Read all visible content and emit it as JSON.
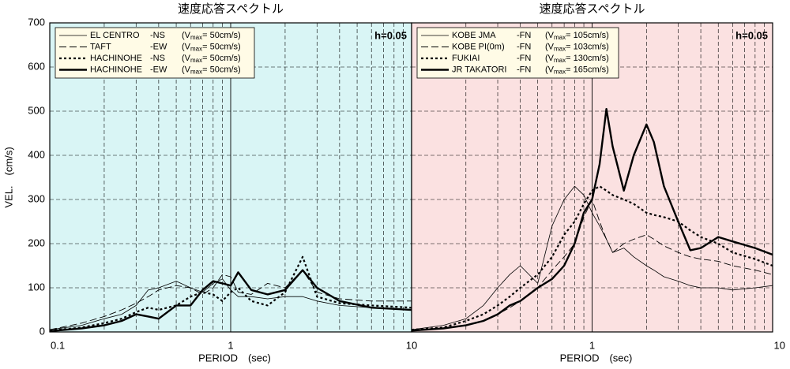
{
  "chart_data": [
    {
      "type": "line",
      "title": "速度応答スペクトル",
      "xlabel": "PERIOD　(sec)",
      "ylabel": "VEL.　(cm/s)",
      "annotation": "h=0.05",
      "background": "#d9f5f5",
      "log_x": true,
      "grid": true,
      "xlim": [
        0.1,
        10
      ],
      "xticks": [
        0.1,
        1,
        10
      ],
      "xminor": [
        0.2,
        0.3,
        0.4,
        0.5,
        0.6,
        0.7,
        0.8,
        0.9,
        2,
        3,
        4,
        5,
        6,
        7,
        8,
        9
      ],
      "ylim": [
        0,
        700
      ],
      "yticks": [
        0,
        100,
        200,
        300,
        400,
        500,
        600,
        700
      ],
      "legend_prefix": "(V",
      "legend_sub": "max",
      "legend_loc": "upper left",
      "series": [
        {
          "name": "EL CENTRO",
          "component": "-NS",
          "vmax": "= 50cm/s)",
          "color": "#000",
          "style": "thin",
          "x": [
            0.1,
            0.15,
            0.2,
            0.25,
            0.3,
            0.35,
            0.4,
            0.5,
            0.6,
            0.7,
            0.8,
            0.9,
            1,
            1.1,
            1.3,
            1.6,
            2,
            2.5,
            3,
            4,
            6,
            10
          ],
          "values": [
            5,
            15,
            30,
            40,
            60,
            95,
            100,
            115,
            100,
            90,
            110,
            120,
            95,
            80,
            80,
            75,
            80,
            80,
            70,
            60,
            55,
            50
          ]
        },
        {
          "name": "TAFT",
          "component": "-EW",
          "vmax": "= 50cm/s)",
          "color": "#000",
          "style": "dash",
          "x": [
            0.1,
            0.15,
            0.2,
            0.25,
            0.3,
            0.35,
            0.4,
            0.5,
            0.6,
            0.7,
            0.8,
            0.9,
            1,
            1.1,
            1.3,
            1.6,
            2,
            2.5,
            3,
            4,
            6,
            10
          ],
          "values": [
            5,
            20,
            35,
            50,
            65,
            80,
            95,
            105,
            100,
            85,
            100,
            130,
            125,
            90,
            85,
            110,
            100,
            140,
            90,
            75,
            70,
            70
          ]
        },
        {
          "name": "HACHINOHE",
          "component": "-NS",
          "vmax": "= 50cm/s)",
          "color": "#000",
          "style": "dot",
          "x": [
            0.1,
            0.15,
            0.2,
            0.25,
            0.3,
            0.35,
            0.4,
            0.5,
            0.6,
            0.7,
            0.8,
            0.9,
            1,
            1.1,
            1.3,
            1.6,
            2,
            2.5,
            3,
            4,
            6,
            10
          ],
          "values": [
            3,
            10,
            20,
            30,
            45,
            55,
            50,
            60,
            80,
            90,
            85,
            70,
            90,
            100,
            70,
            60,
            90,
            170,
            80,
            65,
            60,
            55
          ]
        },
        {
          "name": "HACHINOHE",
          "component": "-EW",
          "vmax": "= 50cm/s)",
          "color": "#000",
          "style": "bold",
          "x": [
            0.1,
            0.15,
            0.2,
            0.25,
            0.3,
            0.35,
            0.4,
            0.5,
            0.6,
            0.7,
            0.8,
            0.9,
            1,
            1.1,
            1.3,
            1.6,
            2,
            2.5,
            3,
            4,
            6,
            10
          ],
          "values": [
            2,
            8,
            15,
            25,
            40,
            35,
            30,
            60,
            60,
            95,
            115,
            110,
            105,
            135,
            95,
            85,
            95,
            140,
            100,
            70,
            55,
            50
          ]
        }
      ]
    },
    {
      "type": "line",
      "title": "速度応答スペクトル",
      "xlabel": "PERIOD　(sec)",
      "annotation": "h=0.05",
      "background": "#fbe1e1",
      "log_x": true,
      "grid": true,
      "xlim": [
        0.1,
        10
      ],
      "xticks": [
        1,
        10
      ],
      "xminor": [
        0.2,
        0.3,
        0.4,
        0.5,
        0.6,
        0.7,
        0.8,
        0.9,
        2,
        3,
        4,
        5,
        6,
        7,
        8,
        9
      ],
      "ylim": [
        0,
        700
      ],
      "ygrid": [
        100,
        200,
        300,
        400,
        500,
        600
      ],
      "legend_prefix": "(V",
      "legend_sub": "max",
      "legend_loc": "upper left",
      "series": [
        {
          "name": "KOBE JMA",
          "component": "-FN",
          "vmax": "= 105cm/s)",
          "color": "#000",
          "style": "thin",
          "x": [
            0.1,
            0.15,
            0.2,
            0.25,
            0.3,
            0.35,
            0.4,
            0.5,
            0.6,
            0.7,
            0.8,
            0.9,
            1,
            1.1,
            1.2,
            1.3,
            1.5,
            1.7,
            2,
            2.2,
            2.5,
            3,
            3.5,
            4,
            5,
            6,
            8,
            10
          ],
          "values": [
            5,
            15,
            30,
            60,
            100,
            130,
            150,
            110,
            240,
            300,
            330,
            310,
            270,
            240,
            210,
            180,
            190,
            170,
            150,
            140,
            125,
            115,
            105,
            100,
            100,
            95,
            100,
            105
          ]
        },
        {
          "name": "KOBE PI(0m)",
          "component": "-FN",
          "vmax": "= 103cm/s)",
          "color": "#000",
          "style": "dash",
          "x": [
            0.1,
            0.15,
            0.2,
            0.25,
            0.3,
            0.35,
            0.4,
            0.5,
            0.6,
            0.7,
            0.8,
            0.9,
            1,
            1.1,
            1.2,
            1.3,
            1.5,
            1.7,
            2,
            2.2,
            2.5,
            3,
            3.5,
            4,
            5,
            6,
            8,
            10
          ],
          "values": [
            3,
            8,
            15,
            25,
            40,
            55,
            70,
            100,
            140,
            170,
            200,
            260,
            300,
            250,
            210,
            180,
            200,
            210,
            220,
            210,
            195,
            180,
            170,
            165,
            160,
            150,
            140,
            130
          ]
        },
        {
          "name": "FUKIAI",
          "component": "-FN",
          "vmax": "= 130cm/s)",
          "color": "#000",
          "style": "dot",
          "x": [
            0.1,
            0.15,
            0.2,
            0.25,
            0.3,
            0.35,
            0.4,
            0.5,
            0.6,
            0.7,
            0.8,
            0.9,
            1,
            1.1,
            1.2,
            1.3,
            1.5,
            1.7,
            2,
            2.2,
            2.5,
            3,
            3.5,
            4,
            5,
            6,
            8,
            10
          ],
          "values": [
            5,
            10,
            25,
            40,
            60,
            80,
            100,
            130,
            170,
            220,
            250,
            290,
            320,
            330,
            320,
            310,
            300,
            290,
            270,
            265,
            260,
            250,
            230,
            215,
            200,
            180,
            165,
            150
          ]
        },
        {
          "name": "JR TAKATORI",
          "component": "-FN",
          "vmax": "= 165cm/s)",
          "color": "#000",
          "style": "bold",
          "x": [
            0.1,
            0.15,
            0.2,
            0.25,
            0.3,
            0.35,
            0.4,
            0.5,
            0.6,
            0.7,
            0.8,
            0.9,
            1,
            1.1,
            1.2,
            1.3,
            1.5,
            1.7,
            2,
            2.2,
            2.5,
            3,
            3.5,
            4,
            5,
            6,
            8,
            10
          ],
          "values": [
            3,
            8,
            15,
            25,
            40,
            60,
            70,
            100,
            120,
            150,
            200,
            270,
            300,
            380,
            505,
            420,
            320,
            400,
            470,
            430,
            330,
            250,
            185,
            190,
            215,
            205,
            190,
            175
          ]
        }
      ]
    }
  ]
}
